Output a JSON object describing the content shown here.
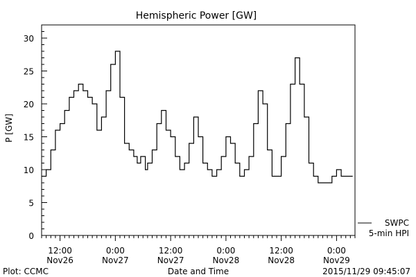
{
  "chart_data": {
    "type": "line",
    "title": "Hemispheric Power [GW]",
    "ylabel": "P [GW]",
    "xlabel": "Date and Time",
    "ylim": [
      0,
      32
    ],
    "xlim": [
      "2015-11-26 08:00",
      "2015-11-29 04:00"
    ],
    "grid": false,
    "yticks": [
      0,
      5,
      10,
      15,
      20,
      25,
      30
    ],
    "xticks": [
      {
        "time": "2015-11-26 12:00",
        "line1": "12:00",
        "line2": "Nov26"
      },
      {
        "time": "2015-11-27 00:00",
        "line1": "0:00",
        "line2": "Nov27"
      },
      {
        "time": "2015-11-27 12:00",
        "line1": "12:00",
        "line2": "Nov27"
      },
      {
        "time": "2015-11-28 00:00",
        "line1": "0:00",
        "line2": "Nov28"
      },
      {
        "time": "2015-11-28 12:00",
        "line1": "12:00",
        "line2": "Nov28"
      },
      {
        "time": "2015-11-29 00:00",
        "line1": "0:00",
        "line2": "Nov29"
      }
    ],
    "series": [
      {
        "name": "5-min HPI",
        "source": "SWPC",
        "color": "#000000",
        "x": [
          "2015-11-26 08:00",
          "2015-11-26 09:00",
          "2015-11-26 10:00",
          "2015-11-26 11:00",
          "2015-11-26 12:00",
          "2015-11-26 13:00",
          "2015-11-26 14:00",
          "2015-11-26 15:00",
          "2015-11-26 16:00",
          "2015-11-26 17:00",
          "2015-11-26 18:00",
          "2015-11-26 19:00",
          "2015-11-26 20:00",
          "2015-11-26 21:00",
          "2015-11-26 22:00",
          "2015-11-26 23:00",
          "2015-11-27 00:00",
          "2015-11-27 01:00",
          "2015-11-27 02:00",
          "2015-11-27 03:00",
          "2015-11-27 04:00",
          "2015-11-27 04:45",
          "2015-11-27 05:30",
          "2015-11-27 06:30",
          "2015-11-27 07:00",
          "2015-11-27 08:00",
          "2015-11-27 09:00",
          "2015-11-27 10:00",
          "2015-11-27 11:00",
          "2015-11-27 12:00",
          "2015-11-27 13:00",
          "2015-11-27 14:00",
          "2015-11-27 15:00",
          "2015-11-27 16:00",
          "2015-11-27 17:00",
          "2015-11-27 18:00",
          "2015-11-27 19:00",
          "2015-11-27 20:00",
          "2015-11-27 21:00",
          "2015-11-27 22:00",
          "2015-11-27 23:00",
          "2015-11-28 00:00",
          "2015-11-28 01:00",
          "2015-11-28 02:00",
          "2015-11-28 03:00",
          "2015-11-28 04:00",
          "2015-11-28 05:00",
          "2015-11-28 06:00",
          "2015-11-28 07:00",
          "2015-11-28 08:00",
          "2015-11-28 09:00",
          "2015-11-28 10:00",
          "2015-11-28 11:00",
          "2015-11-28 12:00",
          "2015-11-28 13:00",
          "2015-11-28 14:00",
          "2015-11-28 15:00",
          "2015-11-28 16:00",
          "2015-11-28 17:00",
          "2015-11-28 18:00",
          "2015-11-28 19:00",
          "2015-11-28 20:00",
          "2015-11-28 21:00",
          "2015-11-28 22:00",
          "2015-11-28 23:00",
          "2015-11-29 00:00",
          "2015-11-29 01:00",
          "2015-11-29 02:00",
          "2015-11-29 03:00",
          "2015-11-29 03:30"
        ],
        "y": [
          9,
          10,
          13,
          16,
          17,
          19,
          21,
          22,
          23,
          22,
          21,
          20,
          16,
          18,
          22,
          26,
          28,
          21,
          14,
          13,
          12,
          11,
          12,
          10,
          11,
          13,
          17,
          19,
          16,
          15,
          12,
          10,
          11,
          14,
          18,
          15,
          11,
          10,
          9,
          10,
          12,
          15,
          14,
          11,
          9,
          10,
          12,
          17,
          22,
          20,
          13,
          9,
          9,
          12,
          17,
          23,
          27,
          23,
          18,
          11,
          9,
          8,
          8,
          8,
          9,
          10,
          9,
          9,
          9,
          9
        ]
      }
    ],
    "legend": [
      {
        "label": "SWPC"
      },
      {
        "label": "5-min HPI"
      }
    ],
    "legend_position": "bottom-right outside plot"
  },
  "footer": {
    "left": "Plot: CCMC",
    "right": "2015/11/29 09:45:07"
  }
}
